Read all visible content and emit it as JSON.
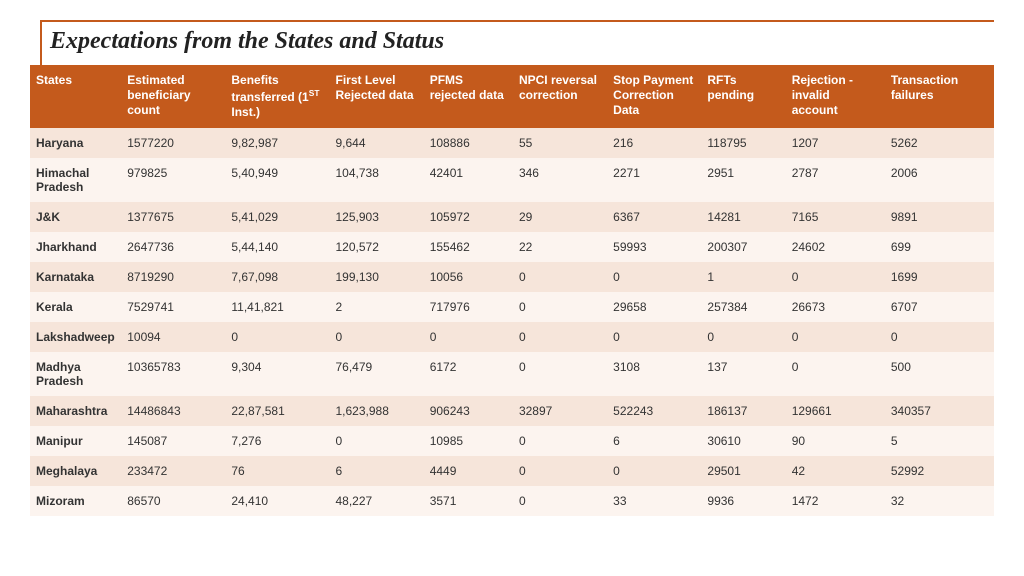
{
  "title": "Expectations from the States and Status",
  "table": {
    "header_bg": "#c45a1c",
    "header_fg": "#ffffff",
    "row_odd_bg": "#f6e5da",
    "row_even_bg": "#fcf4ef",
    "title_font": "Georgia, serif",
    "body_font": "Arial, sans-serif",
    "columns": [
      "States",
      "Estimated beneficiary count",
      "Benefits transferred (1ST Inst.)",
      "First Level Rejected data",
      "PFMS rejected data",
      "NPCI reversal correction",
      "Stop Payment Correction Data",
      "RFTs pending",
      "Rejection - invalid account",
      "Transaction failures"
    ],
    "rows": [
      [
        "Haryana",
        "1577220",
        "9,82,987",
        "9,644",
        "108886",
        "55",
        "216",
        "118795",
        "1207",
        "5262"
      ],
      [
        "Himachal Pradesh",
        "979825",
        "5,40,949",
        "104,738",
        "42401",
        "346",
        "2271",
        "2951",
        "2787",
        "2006"
      ],
      [
        "J&K",
        "1377675",
        "5,41,029",
        "125,903",
        "105972",
        "29",
        "6367",
        "14281",
        "7165",
        "9891"
      ],
      [
        "Jharkhand",
        "2647736",
        "5,44,140",
        "120,572",
        "155462",
        "22",
        "59993",
        "200307",
        "24602",
        "699"
      ],
      [
        "Karnataka",
        "8719290",
        "7,67,098",
        "199,130",
        "10056",
        "0",
        "0",
        "1",
        "0",
        "1699"
      ],
      [
        "Kerala",
        "7529741",
        "11,41,821",
        "2",
        "717976",
        "0",
        "29658",
        "257384",
        "26673",
        "6707"
      ],
      [
        "Lakshadweep",
        "10094",
        "0",
        "0",
        "0",
        "0",
        "0",
        "0",
        "0",
        "0"
      ],
      [
        "Madhya Pradesh",
        "10365783",
        "9,304",
        "76,479",
        "6172",
        "0",
        "3108",
        "137",
        "0",
        "500"
      ],
      [
        "Maharashtra",
        "14486843",
        "22,87,581",
        "1,623,988",
        "906243",
        "32897",
        "522243",
        "186137",
        "129661",
        "340357"
      ],
      [
        "Manipur",
        "145087",
        "7,276",
        "0",
        "10985",
        "0",
        "6",
        "30610",
        "90",
        "5"
      ],
      [
        "Meghalaya",
        "233472",
        "76",
        "6",
        "4449",
        "0",
        "0",
        "29501",
        "42",
        "52992"
      ],
      [
        "Mizoram",
        "86570",
        "24,410",
        "48,227",
        "3571",
        "0",
        "33",
        "9936",
        "1472",
        "32"
      ]
    ]
  }
}
